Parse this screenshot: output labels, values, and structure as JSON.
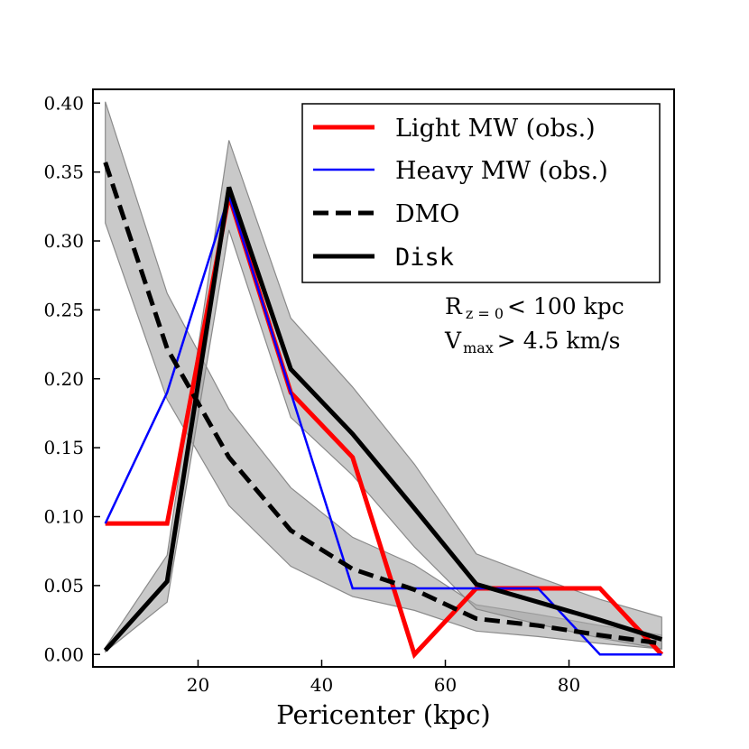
{
  "chart_data": {
    "type": "line",
    "xlabel": "Pericenter (kpc)",
    "ylabel": "",
    "xlim": [
      3,
      97
    ],
    "ylim": [
      -0.009,
      0.41
    ],
    "x_ticks": [
      20,
      40,
      60,
      80
    ],
    "x_tick_labels": [
      "20",
      "40",
      "60",
      "80"
    ],
    "y_ticks": [
      0.0,
      0.05,
      0.1,
      0.15,
      0.2,
      0.25,
      0.3,
      0.35,
      0.4
    ],
    "y_tick_labels": [
      "0.00",
      "0.05",
      "0.10",
      "0.15",
      "0.20",
      "0.25",
      "0.30",
      "0.35",
      "0.40"
    ],
    "grid": false,
    "legend_position": "top-right",
    "annotations": {
      "line1_main": "R",
      "line1_sub": "z = 0",
      "line1_rest": "< 100 kpc",
      "line2_main": "V",
      "line2_sub": "max",
      "line2_rest": "> 4.5 km/s"
    },
    "series": [
      {
        "name": "Light MW (obs.)",
        "color": "#ff0000",
        "style": "solid-thick",
        "x": [
          5,
          15,
          25,
          35,
          45,
          55,
          65,
          75,
          85,
          95
        ],
        "y": [
          0.095,
          0.095,
          0.333,
          0.19,
          0.143,
          0.0,
          0.048,
          0.048,
          0.048,
          0.0
        ]
      },
      {
        "name": "Heavy MW (obs.)",
        "color": "#0000ff",
        "style": "solid-thin",
        "x": [
          5,
          15,
          25,
          35,
          45,
          55,
          65,
          75,
          85,
          95
        ],
        "y": [
          0.095,
          0.19,
          0.333,
          0.19,
          0.048,
          0.048,
          0.048,
          0.048,
          0.0,
          0.0
        ]
      },
      {
        "name": "DMO",
        "color": "#000000",
        "style": "dashed",
        "x": [
          5,
          15,
          25,
          35,
          45,
          55,
          65,
          75,
          85,
          95
        ],
        "y": [
          0.357,
          0.222,
          0.143,
          0.09,
          0.062,
          0.047,
          0.026,
          0.021,
          0.014,
          0.008
        ],
        "band_low": [
          0.313,
          0.185,
          0.108,
          0.064,
          0.042,
          0.032,
          0.017,
          0.013,
          0.008,
          0.004
        ],
        "band_high": [
          0.401,
          0.262,
          0.178,
          0.121,
          0.085,
          0.065,
          0.036,
          0.029,
          0.021,
          0.014
        ]
      },
      {
        "name": "Disk",
        "color": "#000000",
        "style": "solid-thick",
        "x": [
          5,
          15,
          25,
          35,
          45,
          55,
          65,
          75,
          85,
          95
        ],
        "y": [
          0.003,
          0.053,
          0.339,
          0.207,
          0.16,
          0.106,
          0.051,
          0.038,
          0.025,
          0.011
        ],
        "band_low": [
          0.002,
          0.038,
          0.308,
          0.172,
          0.13,
          0.078,
          0.033,
          0.022,
          0.012,
          0.004
        ],
        "band_high": [
          0.005,
          0.072,
          0.373,
          0.244,
          0.194,
          0.138,
          0.073,
          0.056,
          0.04,
          0.027
        ]
      }
    ]
  }
}
